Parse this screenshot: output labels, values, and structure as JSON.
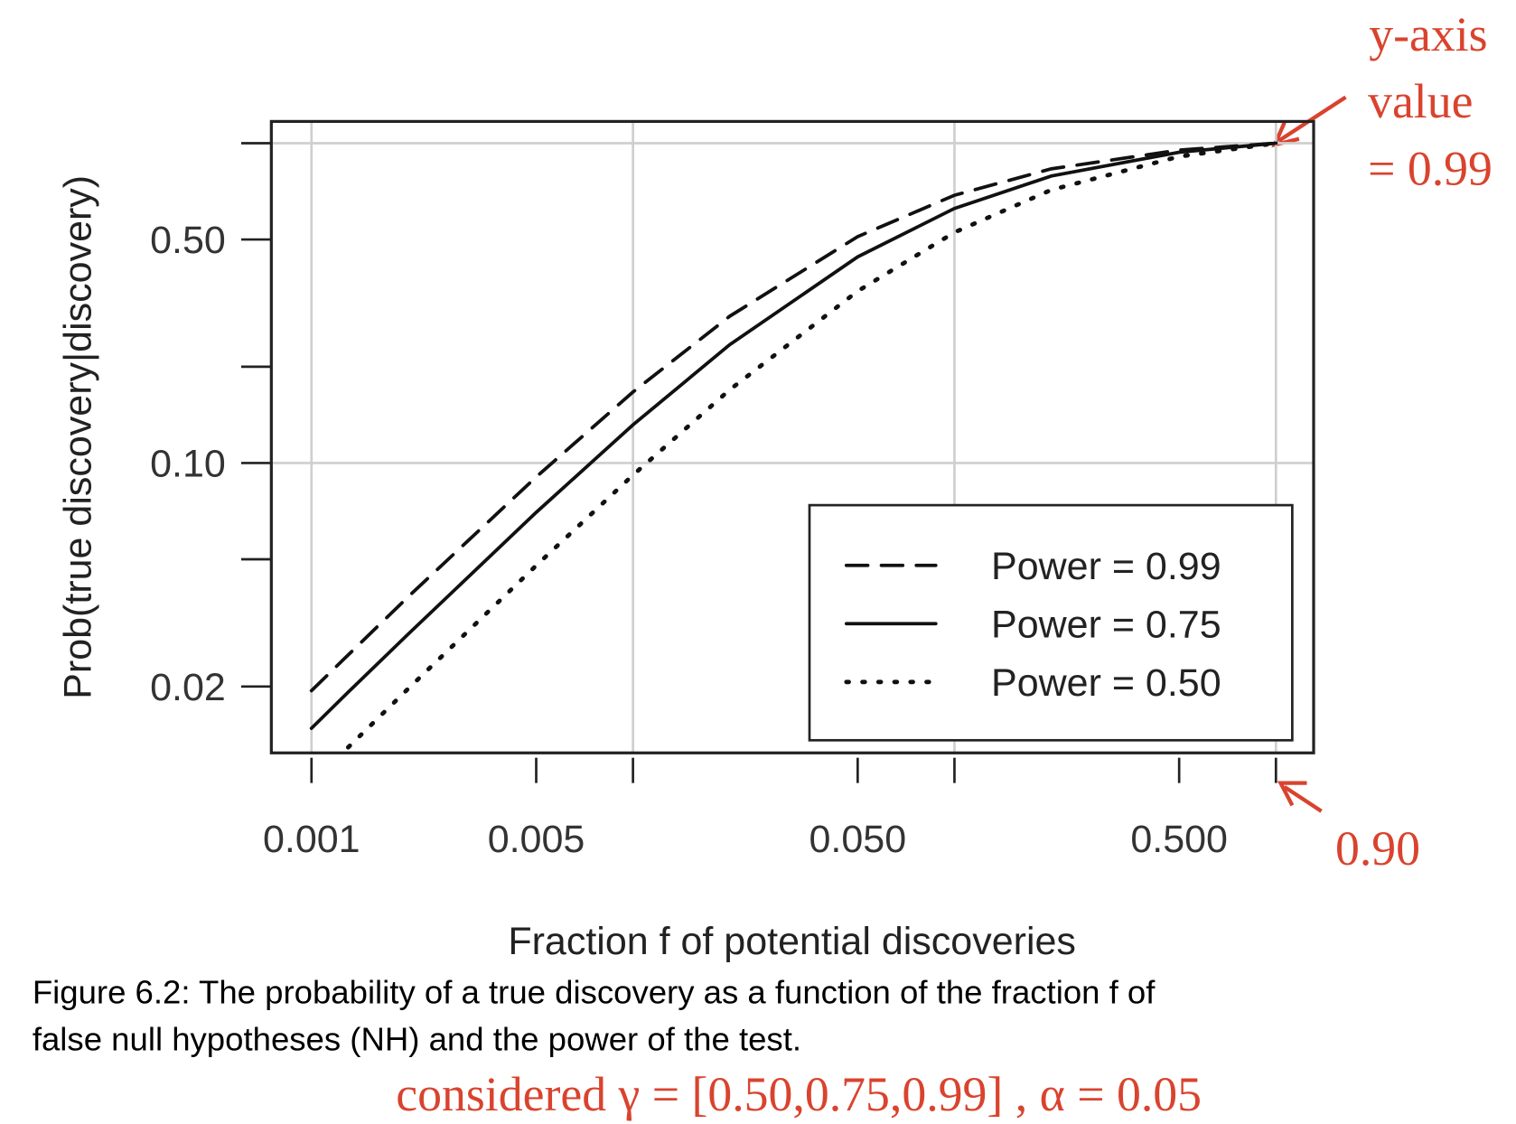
{
  "chart_data": {
    "type": "line",
    "x_label": "Fraction f of potential discoveries",
    "y_label": "Prob(true discovery|discovery)",
    "x": [
      0.001,
      0.0013,
      0.002,
      0.005,
      0.01,
      0.02,
      0.05,
      0.1,
      0.2,
      0.5,
      1
    ],
    "series": [
      {
        "name": "Power = 0.99",
        "color": "#111111",
        "dash": "dashed",
        "values": [
          0.0194,
          0.0251,
          0.0382,
          0.0905,
          0.1667,
          0.2878,
          0.5103,
          0.6875,
          0.8319,
          0.9519,
          1
        ]
      },
      {
        "name": "Power = 0.75",
        "color": "#111111",
        "dash": "solid",
        "values": [
          0.0148,
          0.0192,
          0.0292,
          0.0701,
          0.1316,
          0.2344,
          0.4412,
          0.625,
          0.7895,
          0.9375,
          1
        ]
      },
      {
        "name": "Power = 0.50",
        "color": "#111111",
        "dash": "dotted",
        "values": [
          null,
          0.0129,
          0.0197,
          0.0478,
          0.0917,
          0.1695,
          0.3448,
          0.5263,
          0.7143,
          0.9091,
          1
        ]
      }
    ],
    "xlog": true,
    "ylog": true,
    "xlim": [
      0.00075,
      1.31
    ],
    "ylim": [
      0.0124,
      1.17
    ],
    "xticks": [
      0.001,
      0.005,
      {
        "value": 0.05,
        "label": "0.050"
      },
      {
        "value": 0.5,
        "label": "0.500"
      }
    ],
    "xticks_minor": [
      0.01,
      0.1,
      1
    ],
    "yticks": [
      {
        "value": 0.02,
        "label": "0.02"
      },
      {
        "value": 0.1,
        "label": "0.10"
      },
      {
        "value": 0.5,
        "label": "0.50"
      }
    ],
    "yticks_minor": [
      0.05,
      0.2,
      1
    ],
    "xgrid": [
      0.001,
      0.01,
      0.1,
      1
    ],
    "ygrid": [
      0.1,
      1
    ],
    "legend": "bottom-right",
    "caption": [
      "Figure 6.2: The probability of a true discovery as a function of the fraction f of",
      "false null hypotheses (NH) and the power of the test."
    ],
    "annotations": {
      "y_note": [
        "y-axis",
        "value",
        "= 0.99"
      ],
      "x_note": "0.90",
      "bottom_note": "considered γ = [0.50,0.75,0.99] , α = 0.05",
      "color": "#d9432e"
    }
  }
}
